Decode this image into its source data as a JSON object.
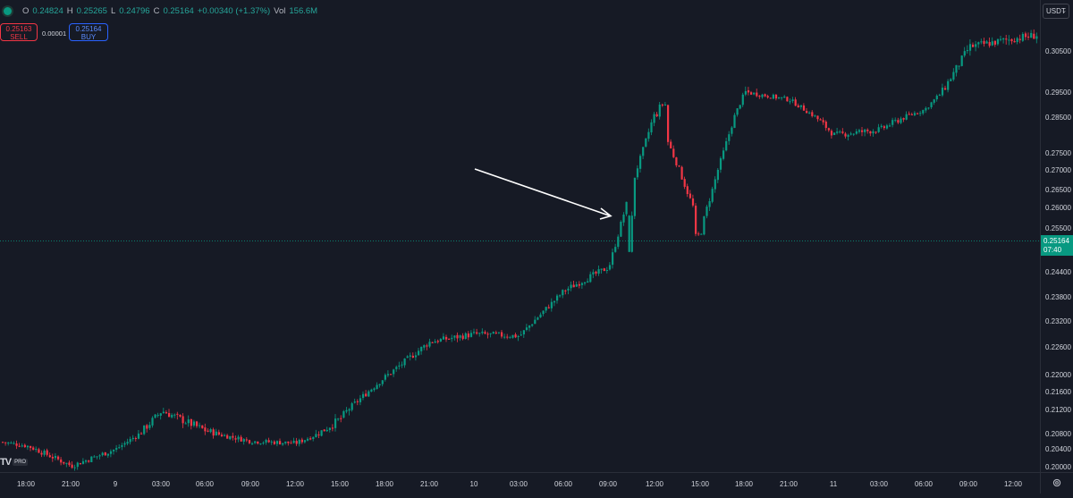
{
  "legend": {
    "open_label": "O",
    "open": "0.24824",
    "high_label": "H",
    "high": "0.25265",
    "low_label": "L",
    "low": "0.24796",
    "close_label": "C",
    "close": "0.25164",
    "change": "+0.00340 (+1.37%)",
    "vol_label": "Vol",
    "vol": "156.6M"
  },
  "trade": {
    "sell_price": "0.25163",
    "sell_label": "SELL",
    "spread": "0.00001",
    "buy_price": "0.25164",
    "buy_label": "BUY"
  },
  "currency": "USDT",
  "last_price": {
    "price": "0.25164",
    "countdown": "07:40"
  },
  "brand": {
    "logo_text": "TV",
    "badge": "PRO"
  },
  "colors": {
    "up": "#089981",
    "down": "#f23645",
    "background": "#161a25",
    "axis_text": "#d1d4dc",
    "annotation": "#ffffff"
  },
  "chart_data": {
    "type": "candlestick",
    "price_ticks": [
      "0.30500",
      "0.29500",
      "0.28500",
      "0.27500",
      "0.27000",
      "0.26500",
      "0.26000",
      "0.25500",
      "0.24400",
      "0.23800",
      "0.23200",
      "0.22600",
      "0.22000",
      "0.21600",
      "0.21200",
      "0.20800",
      "0.20400",
      "0.20000"
    ],
    "time_ticks": [
      "18:00",
      "21:00",
      "9",
      "03:00",
      "06:00",
      "09:00",
      "12:00",
      "15:00",
      "18:00",
      "21:00",
      "10",
      "03:00",
      "06:00",
      "09:00",
      "12:00",
      "15:00",
      "18:00",
      "21:00",
      "11",
      "03:00",
      "06:00",
      "09:00",
      "12:00"
    ],
    "ohlc": [
      [
        "0.24824",
        "0.25265",
        "0.24796",
        "0.25164"
      ]
    ],
    "close_path": [
      [
        "18:00",
        0.2048
      ],
      [
        "21:00",
        0.2002
      ],
      [
        "9",
        0.204
      ],
      [
        "03:00",
        0.2118
      ],
      [
        "06:00",
        0.2085
      ],
      [
        "09:00",
        0.206
      ],
      [
        "12:00",
        0.2055
      ],
      [
        "15:00",
        0.2105
      ],
      [
        "18:00",
        0.2195
      ],
      [
        "21:00",
        0.2272
      ],
      [
        "10",
        0.229
      ],
      [
        "03:00",
        0.2285
      ],
      [
        "06:00",
        0.2395
      ],
      [
        "09:00",
        0.2452
      ],
      [
        "12:00",
        0.287
      ],
      [
        "15:00",
        0.2545
      ],
      [
        "18:00",
        0.295
      ],
      [
        "21:00",
        0.292
      ],
      [
        "11",
        0.28
      ],
      [
        "03:00",
        0.2815
      ],
      [
        "06:00",
        0.288
      ],
      [
        "09:00",
        0.306
      ],
      [
        "12:00",
        0.308
      ]
    ],
    "last_price": 0.25164,
    "annotation": "arrow",
    "grid": false
  }
}
